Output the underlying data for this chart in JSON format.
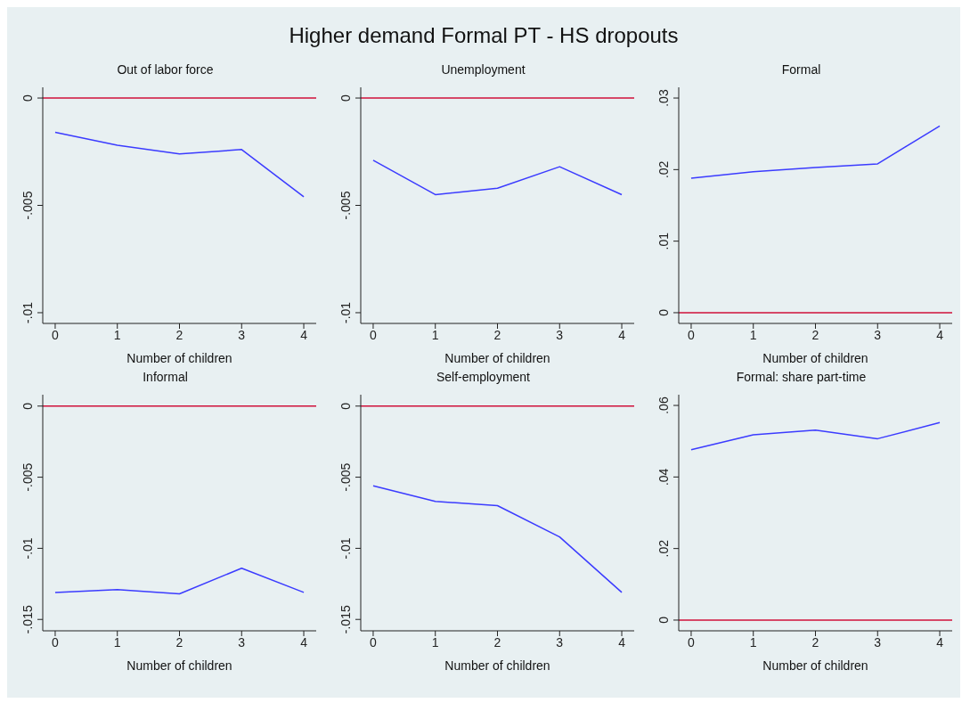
{
  "chart_data": [
    {
      "type": "other",
      "title": "Higher demand Formal PT - HS dropouts"
    },
    {
      "type": "line",
      "title": "Out of labor force",
      "xlabel": "Number of children",
      "x": [
        0,
        1,
        2,
        3,
        4
      ],
      "xlim": [
        -0.2,
        4.2
      ],
      "xticks": [
        0,
        1,
        2,
        3,
        4
      ],
      "ylim": [
        -0.0105,
        0.0005
      ],
      "yticks": [
        {
          "value": -0.01,
          "label": "-.01"
        },
        {
          "value": -0.005,
          "label": "-.005"
        },
        {
          "value": 0,
          "label": "0"
        }
      ],
      "series": [
        {
          "color": "#3b3bff",
          "values": [
            -0.0016,
            -0.0022,
            -0.0026,
            -0.0024,
            -0.0046
          ]
        }
      ],
      "ref_lines": [
        {
          "axis": "y",
          "value": 0,
          "color": "#d0103a"
        }
      ],
      "grid": false,
      "legend": false,
      "marker": "none"
    },
    {
      "type": "line",
      "title": "Unemployment",
      "xlabel": "Number of children",
      "x": [
        0,
        1,
        2,
        3,
        4
      ],
      "xlim": [
        -0.2,
        4.2
      ],
      "xticks": [
        0,
        1,
        2,
        3,
        4
      ],
      "ylim": [
        -0.0105,
        0.0005
      ],
      "yticks": [
        {
          "value": -0.01,
          "label": "-.01"
        },
        {
          "value": -0.005,
          "label": "-.005"
        },
        {
          "value": 0,
          "label": "0"
        }
      ],
      "series": [
        {
          "color": "#3b3bff",
          "values": [
            -0.0029,
            -0.0045,
            -0.0042,
            -0.0032,
            -0.0045
          ]
        }
      ],
      "ref_lines": [
        {
          "axis": "y",
          "value": 0,
          "color": "#d0103a"
        }
      ],
      "grid": false,
      "legend": false,
      "marker": "none"
    },
    {
      "type": "line",
      "title": "Formal",
      "xlabel": "Number of children",
      "x": [
        0,
        1,
        2,
        3,
        4
      ],
      "xlim": [
        -0.2,
        4.2
      ],
      "xticks": [
        0,
        1,
        2,
        3,
        4
      ],
      "ylim": [
        -0.0015,
        0.0315
      ],
      "yticks": [
        {
          "value": 0,
          "label": "0"
        },
        {
          "value": 0.01,
          "label": ".01"
        },
        {
          "value": 0.02,
          "label": ".02"
        },
        {
          "value": 0.03,
          "label": ".03"
        }
      ],
      "series": [
        {
          "color": "#3b3bff",
          "values": [
            0.0188,
            0.0197,
            0.0203,
            0.0208,
            0.0261
          ]
        }
      ],
      "ref_lines": [
        {
          "axis": "y",
          "value": 0,
          "color": "#d0103a"
        }
      ],
      "grid": false,
      "legend": false,
      "marker": "none"
    },
    {
      "type": "line",
      "title": "Informal",
      "xlabel": "Number of children",
      "x": [
        0,
        1,
        2,
        3,
        4
      ],
      "xlim": [
        -0.2,
        4.2
      ],
      "xticks": [
        0,
        1,
        2,
        3,
        4
      ],
      "ylim": [
        -0.0158,
        0.0008
      ],
      "yticks": [
        {
          "value": -0.015,
          "label": "-.015"
        },
        {
          "value": -0.01,
          "label": "-.01"
        },
        {
          "value": -0.005,
          "label": "-.005"
        },
        {
          "value": 0,
          "label": "0"
        }
      ],
      "series": [
        {
          "color": "#3b3bff",
          "values": [
            -0.0131,
            -0.0129,
            -0.0132,
            -0.0114,
            -0.0131
          ]
        }
      ],
      "ref_lines": [
        {
          "axis": "y",
          "value": 0,
          "color": "#d0103a"
        }
      ],
      "grid": false,
      "legend": false,
      "marker": "none"
    },
    {
      "type": "line",
      "title": "Self-employment",
      "xlabel": "Number of children",
      "x": [
        0,
        1,
        2,
        3,
        4
      ],
      "xlim": [
        -0.2,
        4.2
      ],
      "xticks": [
        0,
        1,
        2,
        3,
        4
      ],
      "ylim": [
        -0.0158,
        0.0008
      ],
      "yticks": [
        {
          "value": -0.015,
          "label": "-.015"
        },
        {
          "value": -0.01,
          "label": "-.01"
        },
        {
          "value": -0.005,
          "label": "-.005"
        },
        {
          "value": 0,
          "label": "0"
        }
      ],
      "series": [
        {
          "color": "#3b3bff",
          "values": [
            -0.0056,
            -0.0067,
            -0.007,
            -0.0092,
            -0.0131
          ]
        }
      ],
      "ref_lines": [
        {
          "axis": "y",
          "value": 0,
          "color": "#d0103a"
        }
      ],
      "grid": false,
      "legend": false,
      "marker": "none"
    },
    {
      "type": "line",
      "title": "Formal: share part-time",
      "xlabel": "Number of children",
      "x": [
        0,
        1,
        2,
        3,
        4
      ],
      "xlim": [
        -0.2,
        4.2
      ],
      "xticks": [
        0,
        1,
        2,
        3,
        4
      ],
      "ylim": [
        -0.003,
        0.063
      ],
      "yticks": [
        {
          "value": 0,
          "label": "0"
        },
        {
          "value": 0.02,
          "label": ".02"
        },
        {
          "value": 0.04,
          "label": ".04"
        },
        {
          "value": 0.06,
          "label": ".06"
        }
      ],
      "series": [
        {
          "color": "#3b3bff",
          "values": [
            0.0476,
            0.0518,
            0.0531,
            0.0507,
            0.0552
          ]
        }
      ],
      "ref_lines": [
        {
          "axis": "y",
          "value": 0,
          "color": "#d0103a"
        }
      ],
      "grid": false,
      "legend": false,
      "marker": "none"
    }
  ]
}
